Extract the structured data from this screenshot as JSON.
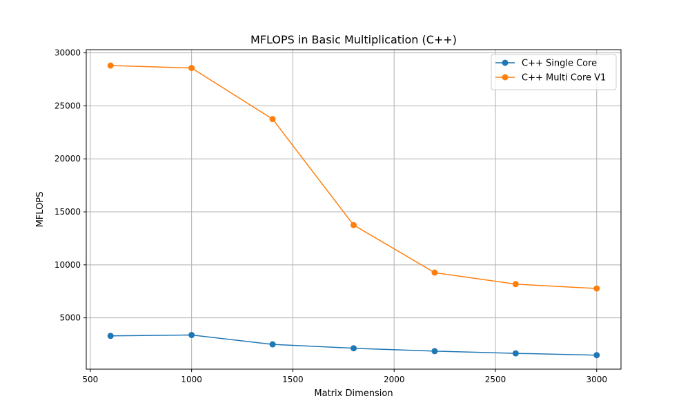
{
  "chart_data": {
    "type": "line",
    "title": "MFLOPS in Basic Multiplication (C++)",
    "xlabel": "Matrix Dimension",
    "ylabel": "MFLOPS",
    "x": [
      600,
      1000,
      1400,
      1800,
      2200,
      2600,
      3000
    ],
    "series": [
      {
        "name": "C++ Single Core",
        "color": "#1f77b4",
        "values": [
          3300,
          3380,
          2500,
          2130,
          1860,
          1650,
          1480
        ]
      },
      {
        "name": "C++ Multi Core V1",
        "color": "#ff7f0e",
        "values": [
          28800,
          28570,
          23750,
          13750,
          9270,
          8180,
          7770
        ]
      }
    ],
    "xlim": [
      480,
      3120
    ],
    "ylim": [
      160,
      30300
    ],
    "x_ticks": [
      500,
      1000,
      1500,
      2000,
      2500,
      3000
    ],
    "y_ticks": [
      5000,
      10000,
      15000,
      20000,
      25000,
      30000
    ],
    "x_tick_labels": [
      "500",
      "1000",
      "1500",
      "2000",
      "2500",
      "3000"
    ],
    "y_tick_labels": [
      "5000",
      "10000",
      "15000",
      "20000",
      "25000",
      "30000"
    ],
    "grid": true,
    "legend_placement": "top-right",
    "marker": "circle"
  }
}
